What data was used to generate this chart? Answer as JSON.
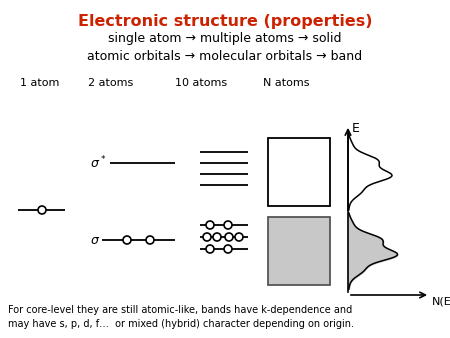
{
  "title": "Electronic structure (properties)",
  "title_color": "#cc2200",
  "line1": "single atom → multiple atoms → solid",
  "line2": "atomic orbitals → molecular orbitals → band",
  "col_labels": [
    "1 atom",
    "2 atoms",
    "10 atoms",
    "N atoms"
  ],
  "footer": "For core-level they are still atomic-like, bands have k-dependence and\nmay have s, p, d, f…  or mixed (hybrid) character depending on origin.",
  "bg_color": "#ffffff"
}
